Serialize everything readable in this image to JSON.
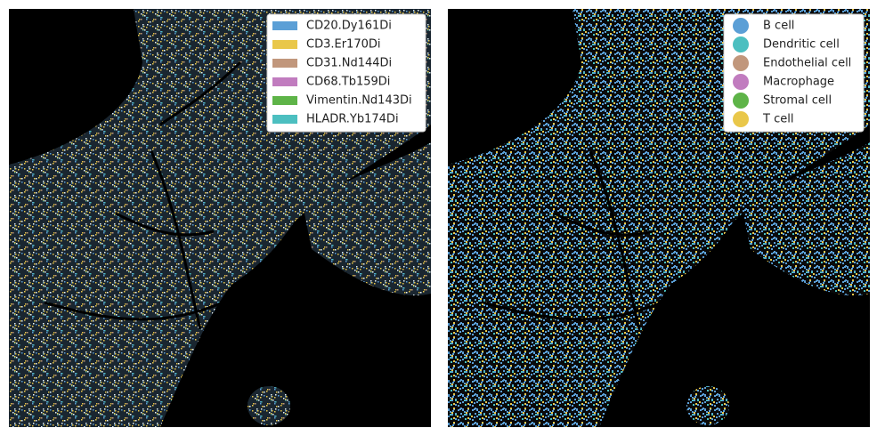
{
  "panels": [
    {
      "legend": [
        {
          "label": "CD20.Dy161Di",
          "color": "#5b9fd6"
        },
        {
          "label": "CD3.Er170Di",
          "color": "#e9c74a"
        },
        {
          "label": "CD31.Nd144Di",
          "color": "#c1977c"
        },
        {
          "label": "CD68.Tb159Di",
          "color": "#c17cbf"
        },
        {
          "label": "Vimentin.Nd143Di",
          "color": "#5eb448"
        },
        {
          "label": "HLADR.Yb174Di",
          "color": "#4cbfc0"
        }
      ]
    },
    {
      "legend": [
        {
          "label": "B cell",
          "color": "#5b9fd6"
        },
        {
          "label": "Dendritic cell",
          "color": "#4cbfc0"
        },
        {
          "label": "Endothelial cell",
          "color": "#c1977c"
        },
        {
          "label": "Macrophage",
          "color": "#c17cbf"
        },
        {
          "label": "Stromal cell",
          "color": "#5eb448"
        },
        {
          "label": "T cell",
          "color": "#e9c74a"
        }
      ]
    }
  ]
}
